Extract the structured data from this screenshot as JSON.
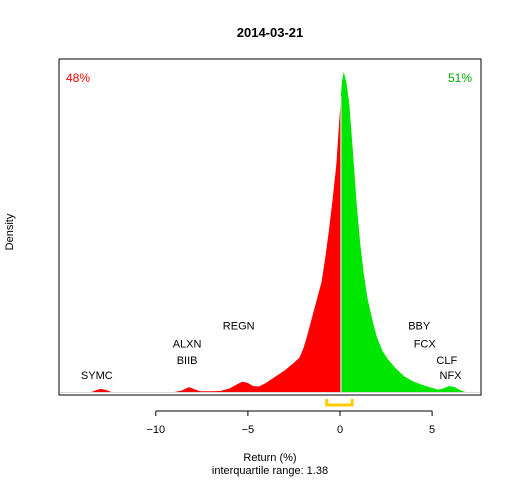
{
  "chart_data": {
    "type": "area",
    "title": "2014-03-21",
    "xlabel": "Return (%)",
    "ylabel": "Density",
    "subtitle": "interquartile range: 1.38",
    "xlim": [
      -15.2,
      7.6
    ],
    "xticks": [
      -10,
      -5,
      0,
      5
    ],
    "grid": false,
    "legend": "none",
    "split_at": 0.05,
    "left_share_label": "48%",
    "right_share_label": "51%",
    "colors": {
      "negative": "#ff0000",
      "positive": "#00e600",
      "iqr": "#ffcc00",
      "split": "#ffffff"
    },
    "iqr": [
      -0.72,
      0.66
    ],
    "density": [
      [
        -14.0,
        0
      ],
      [
        -13.5,
        0
      ],
      [
        -13.2,
        0.006
      ],
      [
        -13.0,
        0.009
      ],
      [
        -12.7,
        0.006
      ],
      [
        -12.4,
        0
      ],
      [
        -9.0,
        0
      ],
      [
        -8.6,
        0.004
      ],
      [
        -8.2,
        0.014
      ],
      [
        -7.9,
        0.008
      ],
      [
        -7.6,
        0.002
      ],
      [
        -7.0,
        0.002
      ],
      [
        -6.5,
        0.003
      ],
      [
        -6.0,
        0.01
      ],
      [
        -5.6,
        0.022
      ],
      [
        -5.3,
        0.03
      ],
      [
        -5.0,
        0.026
      ],
      [
        -4.7,
        0.017
      ],
      [
        -4.4,
        0.016
      ],
      [
        -4.0,
        0.027
      ],
      [
        -3.5,
        0.045
      ],
      [
        -3.0,
        0.063
      ],
      [
        -2.5,
        0.085
      ],
      [
        -2.2,
        0.1
      ],
      [
        -2.0,
        0.125
      ],
      [
        -1.8,
        0.16
      ],
      [
        -1.6,
        0.2
      ],
      [
        -1.4,
        0.24
      ],
      [
        -1.2,
        0.28
      ],
      [
        -1.0,
        0.32
      ],
      [
        -0.8,
        0.39
      ],
      [
        -0.6,
        0.47
      ],
      [
        -0.4,
        0.56
      ],
      [
        -0.2,
        0.66
      ],
      [
        0.0,
        0.82
      ],
      [
        0.1,
        0.9
      ],
      [
        0.2,
        0.93
      ],
      [
        0.35,
        0.9
      ],
      [
        0.5,
        0.84
      ],
      [
        0.7,
        0.7
      ],
      [
        0.9,
        0.55
      ],
      [
        1.1,
        0.43
      ],
      [
        1.3,
        0.34
      ],
      [
        1.5,
        0.27
      ],
      [
        1.8,
        0.2
      ],
      [
        2.0,
        0.16
      ],
      [
        2.3,
        0.12
      ],
      [
        2.6,
        0.095
      ],
      [
        3.0,
        0.07
      ],
      [
        3.5,
        0.045
      ],
      [
        4.0,
        0.03
      ],
      [
        4.5,
        0.02
      ],
      [
        5.0,
        0.012
      ],
      [
        5.3,
        0.007
      ],
      [
        5.6,
        0.01
      ],
      [
        5.9,
        0.017
      ],
      [
        6.2,
        0.015
      ],
      [
        6.5,
        0.006
      ],
      [
        6.8,
        0
      ],
      [
        7.0,
        0
      ]
    ],
    "tickers": [
      {
        "label": "SYMC",
        "x": -13.2,
        "y": 0.038
      },
      {
        "label": "BIIB",
        "x": -8.3,
        "y": 0.082
      },
      {
        "label": "ALXN",
        "x": -8.3,
        "y": 0.13
      },
      {
        "label": "REGN",
        "x": -5.5,
        "y": 0.181
      },
      {
        "label": "BBY",
        "x": 4.3,
        "y": 0.181
      },
      {
        "label": "FCX",
        "x": 4.6,
        "y": 0.13
      },
      {
        "label": "CLF",
        "x": 5.8,
        "y": 0.082
      },
      {
        "label": "NFX",
        "x": 6.0,
        "y": 0.038
      }
    ]
  }
}
